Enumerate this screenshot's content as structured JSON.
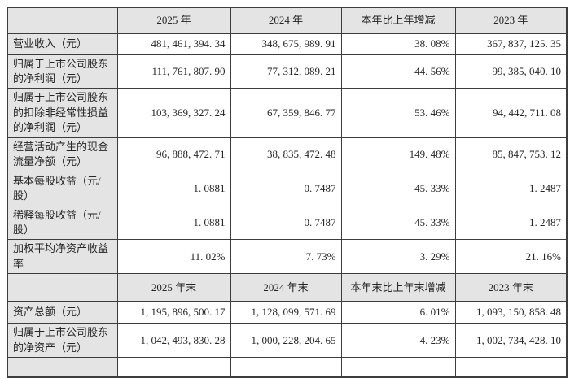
{
  "colors": {
    "header_bg": "#e4e4e4",
    "label_bg": "#e4e4e4",
    "border": "#3d3d3d",
    "text": "#262626",
    "page_bg": "#ffffff"
  },
  "table": {
    "period_header": [
      "",
      "2025 年",
      "2024 年",
      "本年比上年增减",
      "2023 年"
    ],
    "period_rows": [
      {
        "label": "营业收入（元）",
        "values": [
          "481, 461, 394. 34",
          "348, 675, 989. 91",
          "38. 08%",
          "367, 837, 125. 35"
        ]
      },
      {
        "label": "归属于上市公司股东的净利润（元）",
        "values": [
          "111, 761, 807. 90",
          "77, 312, 089. 21",
          "44. 56%",
          "99, 385, 040. 10"
        ]
      },
      {
        "label": "归属于上市公司股东的扣除非经常性损益的净利润（元）",
        "values": [
          "103, 369, 327. 24",
          "67, 359, 846. 77",
          "53. 46%",
          "94, 442, 711. 08"
        ]
      },
      {
        "label": "经营活动产生的现金流量净额（元）",
        "values": [
          "96, 888, 472. 71",
          "38, 835, 472. 48",
          "149. 48%",
          "85, 847, 753. 12"
        ]
      },
      {
        "label": "基本每股收益（元/股）",
        "values": [
          "1. 0881",
          "0. 7487",
          "45. 33%",
          "1. 2487"
        ]
      },
      {
        "label": "稀释每股收益（元/股）",
        "values": [
          "1. 0881",
          "0. 7487",
          "45. 33%",
          "1. 2487"
        ]
      },
      {
        "label": "加权平均净资产收益率",
        "values": [
          "11. 02%",
          "7. 73%",
          "3. 29%",
          "21. 16%"
        ]
      }
    ],
    "endpoint_header": [
      "",
      "2025 年末",
      "2024 年末",
      "本年末比上年末增减",
      "2023 年末"
    ],
    "endpoint_rows": [
      {
        "label": "资产总额（元）",
        "values": [
          "1, 195, 896, 500. 17",
          "1, 128, 099, 571. 69",
          "6. 01%",
          "1, 093, 150, 858. 48"
        ]
      },
      {
        "label": "归属于上市公司股东的净资产（元）",
        "values": [
          "1, 042, 493, 830. 28",
          "1, 000, 228, 204. 65",
          "4. 23%",
          "1, 002, 734, 428. 10"
        ]
      }
    ]
  }
}
